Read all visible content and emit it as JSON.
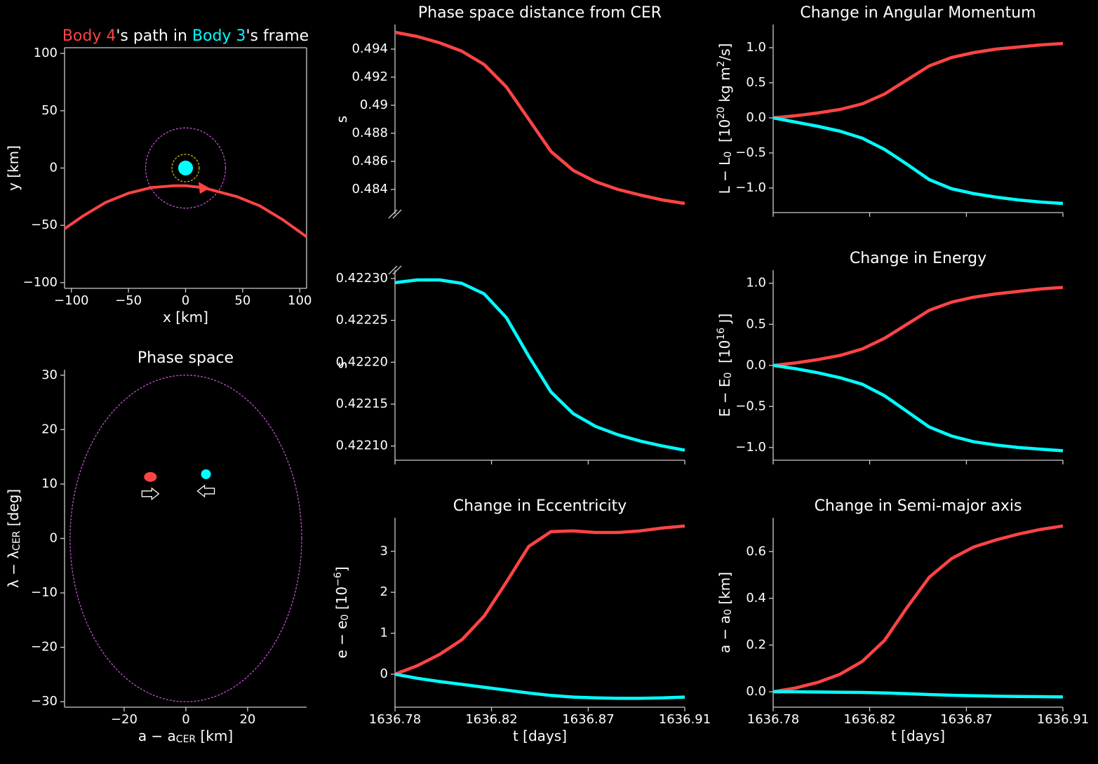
{
  "chart_data": [
    {
      "type": "orbit",
      "title": [
        {
          "t": "Body 4",
          "color": "#ff4444"
        },
        {
          "t": "'s path in "
        },
        {
          "t": "Body 3",
          "color": "#00ffff"
        },
        {
          "t": "'s frame"
        }
      ],
      "xlabel": [
        {
          "t": "x [km]"
        }
      ],
      "ylabel": [
        {
          "t": "y [km]"
        }
      ],
      "xlim": [
        -106,
        106
      ],
      "ylim": [
        -105,
        105
      ],
      "box": true,
      "xticks": [
        {
          "value": -100,
          "label": "−100"
        },
        {
          "value": -50,
          "label": "−50"
        },
        0,
        50,
        100
      ],
      "yticks": [
        {
          "value": -100,
          "label": "−100"
        },
        {
          "value": -50,
          "label": "−50"
        },
        0,
        50,
        100
      ],
      "series": [
        {
          "color": "#ff4444",
          "x": [
            -106,
            -90,
            -70,
            -50,
            -30,
            -10,
            0,
            15,
            30,
            45,
            65,
            85,
            106
          ],
          "values": [
            -53,
            -42,
            -30,
            -22,
            -17,
            -15.5,
            -15.5,
            -17,
            -21,
            -25,
            -33,
            -45,
            -60
          ]
        }
      ],
      "arrow": {
        "x": 15,
        "y": -17,
        "color": "#ff4444"
      },
      "body": {
        "x": 0,
        "y": 0,
        "r": 6.5,
        "color": "#00ffff"
      },
      "circles": [
        {
          "r": 12,
          "color": "#d4b300"
        },
        {
          "r": 35,
          "color": "#c050d0"
        }
      ]
    },
    {
      "type": "scatter",
      "title": [
        {
          "t": "Phase space"
        }
      ],
      "xlabel": [
        {
          "t": "a − a"
        },
        {
          "t": "CER",
          "sub": true
        },
        {
          "t": " [km]"
        }
      ],
      "ylabel": [
        {
          "t": "λ − λ"
        },
        {
          "t": "CER",
          "sub": true
        },
        {
          "t": " [deg]"
        }
      ],
      "xlim": [
        -39.3,
        39.1
      ],
      "ylim": [
        -31,
        31
      ],
      "xticks": [
        {
          "value": -20,
          "label": "−20"
        },
        0,
        20
      ],
      "yticks": [
        {
          "value": -30,
          "label": "−30"
        },
        {
          "value": -20,
          "label": "−20"
        },
        {
          "value": -10,
          "label": "−10"
        },
        0,
        10,
        20,
        30
      ],
      "ellipse": {
        "rx": 37.5,
        "ry": 30,
        "color": "#c050d0"
      },
      "series": [
        {
          "color": "#ff4444",
          "x": [
            -11.5
          ],
          "values": [
            11.3
          ],
          "arrow": "right"
        },
        {
          "color": "#00ffff",
          "x": [
            6.5
          ],
          "values": [
            11.8
          ],
          "arrow": "left"
        }
      ]
    },
    {
      "type": "line",
      "title": [
        {
          "t": "Phase space distance from CER"
        }
      ],
      "ylabel": [
        {
          "t": "s"
        }
      ],
      "bottom_axis": false,
      "break": "bottom",
      "x": [
        1636.78,
        1636.79,
        1636.8,
        1636.81,
        1636.82,
        1636.83,
        1636.84,
        1636.85,
        1636.86,
        1636.87,
        1636.88,
        1636.89,
        1636.9,
        1636.91
      ],
      "xlim": [
        1636.78,
        1636.91
      ],
      "ylim": [
        0.48225,
        0.49575
      ],
      "yticks": [
        0.484,
        0.486,
        0.488,
        0.49,
        0.492,
        0.494
      ],
      "series": [
        {
          "color": "#ff4444",
          "values": [
            0.4952,
            0.4949,
            0.49445,
            0.49385,
            0.4929,
            0.4913,
            0.489,
            0.4867,
            0.48535,
            0.48455,
            0.484,
            0.4836,
            0.48325,
            0.483
          ]
        }
      ]
    },
    {
      "type": "line",
      "ylabel": [
        {
          "t": "s"
        }
      ],
      "xtick_labels": false,
      "break": "top",
      "x": [
        1636.78,
        1636.79,
        1636.8,
        1636.81,
        1636.82,
        1636.83,
        1636.84,
        1636.85,
        1636.86,
        1636.87,
        1636.88,
        1636.89,
        1636.9,
        1636.91
      ],
      "xlim": [
        1636.78,
        1636.91
      ],
      "ylim": [
        0.422083,
        0.42231
      ],
      "xticks": [
        1636.78,
        {
          "value": 1636.8233,
          "label": "1636.82"
        },
        {
          "value": 1636.8667,
          "label": "1636.87"
        },
        1636.91
      ],
      "yticks": [
        {
          "value": 0.4221,
          "label": "0.42210"
        },
        0.42215,
        {
          "value": 0.4222,
          "label": "0.42220"
        },
        0.42225,
        {
          "value": 0.4223,
          "label": "0.42230"
        }
      ],
      "series": [
        {
          "color": "#00ffff",
          "values": [
            0.422295,
            0.4222983,
            0.4222983,
            0.4222942,
            0.4222816,
            0.4222531,
            0.4222071,
            0.4221644,
            0.4221385,
            0.4221234,
            0.4221134,
            0.4221059,
            0.4221,
            0.422095
          ]
        }
      ]
    },
    {
      "type": "line",
      "title": [
        {
          "t": "Change in Eccentricity"
        }
      ],
      "xlabel": [
        {
          "t": "t [days]"
        }
      ],
      "ylabel": [
        {
          "t": "e − e"
        },
        {
          "t": "0",
          "sub": true
        },
        {
          "t": " [10"
        },
        {
          "t": "−6",
          "sup": true
        },
        {
          "t": "]"
        }
      ],
      "x": [
        1636.78,
        1636.79,
        1636.8,
        1636.81,
        1636.82,
        1636.83,
        1636.84,
        1636.85,
        1636.86,
        1636.87,
        1636.88,
        1636.89,
        1636.9,
        1636.91
      ],
      "xlim": [
        1636.78,
        1636.91
      ],
      "ylim": [
        -0.806,
        3.82
      ],
      "xticks": [
        1636.78,
        {
          "value": 1636.8233,
          "label": "1636.82"
        },
        {
          "value": 1636.8667,
          "label": "1636.87"
        },
        1636.91
      ],
      "yticks": [
        0,
        1,
        2,
        3
      ],
      "series": [
        {
          "color": "#ff4444",
          "values": [
            0,
            0.206,
            0.48,
            0.84,
            1.42,
            2.25,
            3.12,
            3.48,
            3.5,
            3.46,
            3.46,
            3.5,
            3.57,
            3.62
          ]
        },
        {
          "color": "#00ffff",
          "values": [
            0,
            -0.1,
            -0.18,
            -0.25,
            -0.32,
            -0.39,
            -0.46,
            -0.52,
            -0.56,
            -0.58,
            -0.59,
            -0.59,
            -0.58,
            -0.56
          ]
        }
      ]
    },
    {
      "type": "line",
      "title": [
        {
          "t": "Change in Angular Momentum"
        }
      ],
      "xtick_labels": false,
      "ylabel": [
        {
          "t": "L − L"
        },
        {
          "t": "0",
          "sub": true
        },
        {
          "t": "  [10"
        },
        {
          "t": "20",
          "sup": true
        },
        {
          "t": " kg m"
        },
        {
          "t": "2",
          "sup": true
        },
        {
          "t": "/s]"
        }
      ],
      "x": [
        1636.78,
        1636.79,
        1636.8,
        1636.81,
        1636.82,
        1636.83,
        1636.84,
        1636.85,
        1636.86,
        1636.87,
        1636.88,
        1636.89,
        1636.9,
        1636.91
      ],
      "xlim": [
        1636.78,
        1636.91
      ],
      "ylim": [
        -1.35,
        1.33
      ],
      "xticks": [
        1636.78,
        {
          "value": 1636.8233,
          "label": "1636.82"
        },
        {
          "value": 1636.8667,
          "label": "1636.87"
        },
        1636.91
      ],
      "yticks": [
        {
          "value": -1,
          "label": "−1.0"
        },
        {
          "value": -0.5,
          "label": "−0.5"
        },
        {
          "value": 0,
          "label": "0.0"
        },
        0.5,
        {
          "value": 1,
          "label": "1.0"
        }
      ],
      "series": [
        {
          "color": "#ff4444",
          "values": [
            0,
            0.03,
            0.07,
            0.12,
            0.2,
            0.34,
            0.54,
            0.74,
            0.86,
            0.93,
            0.98,
            1.01,
            1.04,
            1.06
          ]
        },
        {
          "color": "#00ffff",
          "values": [
            0,
            -0.06,
            -0.12,
            -0.19,
            -0.29,
            -0.45,
            -0.66,
            -0.88,
            -1.01,
            -1.08,
            -1.13,
            -1.17,
            -1.2,
            -1.22
          ]
        }
      ]
    },
    {
      "type": "line",
      "title": [
        {
          "t": "Change in Energy"
        }
      ],
      "xtick_labels": false,
      "ylabel": [
        {
          "t": "E − E"
        },
        {
          "t": "0",
          "sub": true
        },
        {
          "t": "  [10"
        },
        {
          "t": "16",
          "sup": true
        },
        {
          "t": " J]"
        }
      ],
      "x": [
        1636.78,
        1636.79,
        1636.8,
        1636.81,
        1636.82,
        1636.83,
        1636.84,
        1636.85,
        1636.86,
        1636.87,
        1636.88,
        1636.89,
        1636.9,
        1636.91
      ],
      "xlim": [
        1636.78,
        1636.91
      ],
      "ylim": [
        -1.155,
        1.16
      ],
      "xticks": [
        1636.78,
        {
          "value": 1636.8233,
          "label": "1636.82"
        },
        {
          "value": 1636.8667,
          "label": "1636.87"
        },
        1636.91
      ],
      "yticks": [
        {
          "value": -1,
          "label": "−1.0"
        },
        {
          "value": -0.5,
          "label": "−0.5"
        },
        {
          "value": 0,
          "label": "0.0"
        },
        0.5,
        {
          "value": 1,
          "label": "1.0"
        }
      ],
      "series": [
        {
          "color": "#ff4444",
          "values": [
            0,
            0.03,
            0.07,
            0.12,
            0.2,
            0.33,
            0.5,
            0.67,
            0.77,
            0.83,
            0.87,
            0.9,
            0.93,
            0.95
          ]
        },
        {
          "color": "#00ffff",
          "values": [
            0,
            -0.04,
            -0.09,
            -0.15,
            -0.23,
            -0.37,
            -0.56,
            -0.75,
            -0.86,
            -0.93,
            -0.97,
            -1.0,
            -1.02,
            -1.04
          ]
        }
      ]
    },
    {
      "type": "line",
      "title": [
        {
          "t": "Change in Semi-major axis"
        }
      ],
      "xlabel": [
        {
          "t": "t [days]"
        }
      ],
      "ylabel": [
        {
          "t": "a − a"
        },
        {
          "t": "0",
          "sub": true
        },
        {
          "t": " [km]"
        }
      ],
      "x": [
        1636.78,
        1636.79,
        1636.8,
        1636.81,
        1636.82,
        1636.83,
        1636.84,
        1636.85,
        1636.86,
        1636.87,
        1636.88,
        1636.89,
        1636.9,
        1636.91
      ],
      "xlim": [
        1636.78,
        1636.91
      ],
      "ylim": [
        -0.066,
        0.745
      ],
      "xticks": [
        1636.78,
        {
          "value": 1636.8233,
          "label": "1636.82"
        },
        {
          "value": 1636.8667,
          "label": "1636.87"
        },
        1636.91
      ],
      "yticks": [
        {
          "value": 0,
          "label": "0.0"
        },
        0.2,
        0.4,
        0.6
      ],
      "series": [
        {
          "color": "#ff4444",
          "values": [
            0,
            0.016,
            0.04,
            0.075,
            0.13,
            0.22,
            0.36,
            0.49,
            0.57,
            0.62,
            0.65,
            0.675,
            0.695,
            0.71
          ]
        },
        {
          "color": "#00ffff",
          "values": [
            0,
            0,
            -0.001,
            -0.002,
            -0.003,
            -0.005,
            -0.008,
            -0.012,
            -0.015,
            -0.017,
            -0.019,
            -0.02,
            -0.021,
            -0.022
          ]
        }
      ]
    }
  ]
}
